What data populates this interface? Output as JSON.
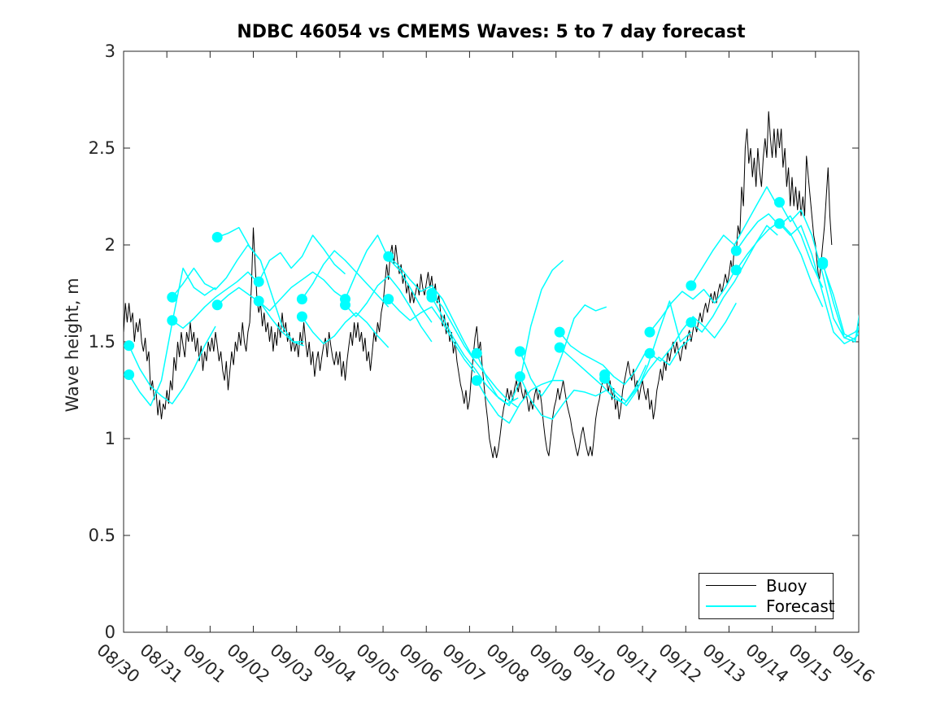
{
  "figure": {
    "title": "NDBC 46054 vs CMEMS Waves: 5 to 7 day forecast"
  },
  "chart_data": {
    "type": "line",
    "title": "NDBC 46054 vs CMEMS Waves: 5 to 7 day forecast",
    "xlabel": "",
    "ylabel": "Wave height, m",
    "grid": false,
    "ylim": [
      0,
      3
    ],
    "y_ticks": [
      0,
      0.5,
      1,
      1.5,
      2,
      2.5,
      3
    ],
    "y_tick_labels": [
      "0",
      "0.5",
      "1",
      "1.5",
      "2",
      "2.5",
      "3"
    ],
    "x_tick_labels": [
      "08/30",
      "08/31",
      "09/01",
      "09/02",
      "09/03",
      "09/04",
      "09/05",
      "09/06",
      "09/07",
      "09/08",
      "09/09",
      "09/10",
      "09/11",
      "09/12",
      "09/13",
      "09/14",
      "09/15",
      "09/16"
    ],
    "x_range_hours": [
      0,
      408
    ],
    "x_time_base": "hours since 08/30 00:00",
    "legend": {
      "position": "inside-bottom-right",
      "entries": [
        {
          "label": "Buoy",
          "color": "#000000"
        },
        {
          "label": "Forecast",
          "color": "#00ffff"
        }
      ]
    },
    "series": [
      {
        "name": "Buoy",
        "style": "line",
        "color": "#000000",
        "line_width": 1,
        "t0_h": 0,
        "step_h": 1,
        "values": [
          1.55,
          1.7,
          1.6,
          1.7,
          1.6,
          1.65,
          1.5,
          1.6,
          1.55,
          1.62,
          1.5,
          1.45,
          1.52,
          1.4,
          1.45,
          1.25,
          1.3,
          1.2,
          1.25,
          1.12,
          1.2,
          1.1,
          1.18,
          1.15,
          1.25,
          1.18,
          1.3,
          1.25,
          1.42,
          1.35,
          1.5,
          1.42,
          1.55,
          1.48,
          1.42,
          1.55,
          1.5,
          1.6,
          1.5,
          1.55,
          1.45,
          1.52,
          1.4,
          1.48,
          1.35,
          1.45,
          1.4,
          1.5,
          1.45,
          1.52,
          1.45,
          1.55,
          1.48,
          1.4,
          1.45,
          1.35,
          1.3,
          1.4,
          1.25,
          1.35,
          1.45,
          1.38,
          1.5,
          1.45,
          1.55,
          1.48,
          1.6,
          1.5,
          1.45,
          1.55,
          1.6,
          1.8,
          2.09,
          1.9,
          1.72,
          1.65,
          1.7,
          1.58,
          1.65,
          1.55,
          1.6,
          1.5,
          1.58,
          1.45,
          1.55,
          1.48,
          1.6,
          1.52,
          1.65,
          1.55,
          1.6,
          1.5,
          1.55,
          1.45,
          1.52,
          1.45,
          1.5,
          1.42,
          1.55,
          1.48,
          1.6,
          1.5,
          1.42,
          1.5,
          1.38,
          1.45,
          1.32,
          1.4,
          1.45,
          1.35,
          1.42,
          1.48,
          1.52,
          1.42,
          1.55,
          1.48,
          1.42,
          1.38,
          1.45,
          1.38,
          1.45,
          1.32,
          1.4,
          1.3,
          1.4,
          1.48,
          1.55,
          1.48,
          1.6,
          1.52,
          1.6,
          1.5,
          1.55,
          1.45,
          1.52,
          1.4,
          1.45,
          1.35,
          1.45,
          1.55,
          1.5,
          1.6,
          1.55,
          1.65,
          1.7,
          1.8,
          1.9,
          1.82,
          1.95,
          2.0,
          1.9,
          2.0,
          1.92,
          1.85,
          1.9,
          1.8,
          1.85,
          1.75,
          1.8,
          1.7,
          1.76,
          1.7,
          1.75,
          1.8,
          1.74,
          1.85,
          1.78,
          1.74,
          1.8,
          1.86,
          1.78,
          1.84,
          1.74,
          1.8,
          1.7,
          1.74,
          1.64,
          1.58,
          1.64,
          1.54,
          1.6,
          1.5,
          1.55,
          1.44,
          1.5,
          1.4,
          1.34,
          1.28,
          1.24,
          1.18,
          1.25,
          1.15,
          1.2,
          1.32,
          1.42,
          1.52,
          1.58,
          1.45,
          1.5,
          1.38,
          1.28,
          1.18,
          1.1,
          1.0,
          0.95,
          0.9,
          0.96,
          0.9,
          0.95,
          1.02,
          1.1,
          1.16,
          1.2,
          1.26,
          1.2,
          1.25,
          1.2,
          1.26,
          1.3,
          1.24,
          1.3,
          1.24,
          1.2,
          1.26,
          1.2,
          1.14,
          1.2,
          1.15,
          1.22,
          1.26,
          1.2,
          1.25,
          1.18,
          1.08,
          1.0,
          0.94,
          0.91,
          1.0,
          1.1,
          1.16,
          1.2,
          1.26,
          1.2,
          1.25,
          1.3,
          1.24,
          1.18,
          1.14,
          1.1,
          1.04,
          1.0,
          0.95,
          0.91,
          0.96,
          1.02,
          1.06,
          1.0,
          0.95,
          0.91,
          0.96,
          0.91,
          1.0,
          1.1,
          1.16,
          1.2,
          1.26,
          1.3,
          1.35,
          1.3,
          1.24,
          1.3,
          1.2,
          1.26,
          1.15,
          1.2,
          1.1,
          1.16,
          1.25,
          1.3,
          1.35,
          1.4,
          1.34,
          1.3,
          1.36,
          1.26,
          1.3,
          1.2,
          1.26,
          1.3,
          1.24,
          1.2,
          1.26,
          1.15,
          1.2,
          1.1,
          1.16,
          1.25,
          1.3,
          1.36,
          1.3,
          1.4,
          1.35,
          1.45,
          1.4,
          1.46,
          1.5,
          1.44,
          1.5,
          1.45,
          1.4,
          1.46,
          1.5,
          1.46,
          1.52,
          1.56,
          1.5,
          1.56,
          1.6,
          1.55,
          1.6,
          1.65,
          1.6,
          1.66,
          1.7,
          1.65,
          1.7,
          1.75,
          1.7,
          1.76,
          1.7,
          1.76,
          1.8,
          1.75,
          1.8,
          1.85,
          1.8,
          1.85,
          1.92,
          1.86,
          2.0,
          1.95,
          2.1,
          2.05,
          2.3,
          2.2,
          2.5,
          2.6,
          2.42,
          2.5,
          2.35,
          2.45,
          2.3,
          2.5,
          2.38,
          2.3,
          2.45,
          2.55,
          2.45,
          2.69,
          2.55,
          2.45,
          2.6,
          2.45,
          2.6,
          2.5,
          2.6,
          2.4,
          2.5,
          2.3,
          2.4,
          2.2,
          2.35,
          2.2,
          2.3,
          2.18,
          2.28,
          2.15,
          2.25,
          2.15,
          2.46,
          2.35,
          2.25,
          2.15,
          2.05,
          2.0,
          1.9,
          1.81,
          1.9,
          2.0,
          2.1,
          2.25,
          2.4,
          2.15,
          2.0
        ]
      },
      {
        "name": "Forecast",
        "style": "line-segments",
        "color": "#00ffff",
        "line_width": 1.5,
        "start_marker": {
          "shape": "filled-circle",
          "radius_px": 6.5,
          "fill": "#00ffff"
        },
        "segments": [
          {
            "t0_h": 3,
            "step_h": 6,
            "values": [
              1.48,
              1.36,
              1.27,
              1.22,
              1.18,
              1.26,
              1.36,
              1.48,
              1.58
            ]
          },
          {
            "t0_h": 3,
            "step_h": 6,
            "values": [
              1.33,
              1.24,
              1.17,
              1.3,
              1.6,
              1.88,
              1.78,
              1.74,
              1.78
            ]
          },
          {
            "t0_h": 27,
            "step_h": 6,
            "values": [
              1.73,
              1.8,
              1.88,
              1.8,
              1.77,
              1.83,
              1.92,
              2.0,
              1.93
            ]
          },
          {
            "t0_h": 27,
            "step_h": 6,
            "values": [
              1.61,
              1.57,
              1.62,
              1.68,
              1.73,
              1.77,
              1.81,
              1.86,
              1.8
            ]
          },
          {
            "t0_h": 52,
            "step_h": 6,
            "values": [
              2.04,
              2.06,
              2.09,
              1.99,
              1.92,
              1.75,
              1.58,
              1.5,
              1.5
            ]
          },
          {
            "t0_h": 52,
            "step_h": 6,
            "values": [
              1.69,
              1.74,
              1.78,
              1.74,
              1.7,
              1.62,
              1.55,
              1.5,
              1.48
            ]
          },
          {
            "t0_h": 75,
            "step_h": 6,
            "values": [
              1.81,
              1.92,
              1.96,
              1.88,
              1.94,
              2.05,
              1.98,
              1.9,
              1.85
            ]
          },
          {
            "t0_h": 75,
            "step_h": 6,
            "values": [
              1.71,
              1.66,
              1.72,
              1.78,
              1.82,
              1.86,
              1.82,
              1.76,
              1.72
            ]
          },
          {
            "t0_h": 99,
            "step_h": 6,
            "values": [
              1.72,
              1.8,
              1.9,
              1.97,
              1.92,
              1.86,
              1.8,
              1.74,
              1.68
            ]
          },
          {
            "t0_h": 99,
            "step_h": 6,
            "values": [
              1.63,
              1.55,
              1.49,
              1.53,
              1.6,
              1.65,
              1.6,
              1.53,
              1.47
            ]
          },
          {
            "t0_h": 123,
            "step_h": 6,
            "values": [
              1.72,
              1.85,
              1.97,
              2.05,
              1.93,
              1.87,
              1.78,
              1.68,
              1.6
            ]
          },
          {
            "t0_h": 123,
            "step_h": 6,
            "values": [
              1.69,
              1.63,
              1.7,
              1.79,
              1.84,
              1.77,
              1.68,
              1.58,
              1.5
            ]
          },
          {
            "t0_h": 147,
            "step_h": 6,
            "values": [
              1.94,
              1.89,
              1.82,
              1.76,
              1.79,
              1.72,
              1.61,
              1.5,
              1.4
            ]
          },
          {
            "t0_h": 147,
            "step_h": 6,
            "values": [
              1.72,
              1.66,
              1.61,
              1.65,
              1.68,
              1.6,
              1.5,
              1.41,
              1.34
            ]
          },
          {
            "t0_h": 171,
            "step_h": 6,
            "values": [
              1.75,
              1.68,
              1.58,
              1.48,
              1.4,
              1.33,
              1.26,
              1.2,
              1.16
            ]
          },
          {
            "t0_h": 171,
            "step_h": 6,
            "values": [
              1.73,
              1.63,
              1.52,
              1.43,
              1.36,
              1.28,
              1.22,
              1.18,
              1.21
            ]
          },
          {
            "t0_h": 196,
            "step_h": 6,
            "values": [
              1.44,
              1.3,
              1.21,
              1.17,
              1.3,
              1.58,
              1.77,
              1.87,
              1.92
            ]
          },
          {
            "t0_h": 196,
            "step_h": 6,
            "values": [
              1.3,
              1.2,
              1.12,
              1.08,
              1.18,
              1.25,
              1.28,
              1.3,
              1.3
            ]
          },
          {
            "t0_h": 220,
            "step_h": 6,
            "values": [
              1.45,
              1.31,
              1.22,
              1.3,
              1.45,
              1.62,
              1.69,
              1.66,
              1.68
            ]
          },
          {
            "t0_h": 220,
            "step_h": 6,
            "values": [
              1.32,
              1.2,
              1.12,
              1.1,
              1.18,
              1.25,
              1.24,
              1.22,
              1.25
            ]
          },
          {
            "t0_h": 242,
            "step_h": 6,
            "values": [
              1.55,
              1.48,
              1.44,
              1.41,
              1.38,
              1.32,
              1.28,
              1.35,
              1.45
            ]
          },
          {
            "t0_h": 242,
            "step_h": 6,
            "values": [
              1.47,
              1.42,
              1.37,
              1.32,
              1.27,
              1.21,
              1.18,
              1.26,
              1.38
            ]
          },
          {
            "t0_h": 267,
            "step_h": 6,
            "values": [
              1.33,
              1.22,
              1.17,
              1.25,
              1.38,
              1.55,
              1.71,
              1.5,
              1.55
            ]
          },
          {
            "t0_h": 267,
            "step_h": 6,
            "values": [
              1.31,
              1.24,
              1.19,
              1.26,
              1.35,
              1.42,
              1.38,
              1.47,
              1.52
            ]
          },
          {
            "t0_h": 292,
            "step_h": 6,
            "values": [
              1.55,
              1.62,
              1.7,
              1.76,
              1.72,
              1.77,
              1.7,
              1.78,
              1.88
            ]
          },
          {
            "t0_h": 292,
            "step_h": 6,
            "values": [
              1.44,
              1.4,
              1.47,
              1.56,
              1.63,
              1.58,
              1.52,
              1.6,
              1.7
            ]
          },
          {
            "t0_h": 315,
            "step_h": 6,
            "values": [
              1.79,
              1.88,
              1.97,
              2.05,
              2.0,
              2.1,
              2.2,
              2.3,
              2.2
            ]
          },
          {
            "t0_h": 315,
            "step_h": 6,
            "values": [
              1.6,
              1.55,
              1.63,
              1.73,
              1.81,
              1.91,
              2.01,
              2.1,
              2.05
            ]
          },
          {
            "t0_h": 340,
            "step_h": 6,
            "values": [
              1.97,
              2.05,
              2.12,
              2.16,
              2.1,
              2.15,
              2.05,
              1.9,
              1.78
            ]
          },
          {
            "t0_h": 340,
            "step_h": 6,
            "values": [
              1.87,
              1.95,
              2.02,
              2.08,
              2.12,
              2.06,
              1.95,
              1.8,
              1.68
            ]
          },
          {
            "t0_h": 364,
            "step_h": 6,
            "values": [
              2.22,
              2.12,
              2.18,
              2.05,
              1.85,
              1.62,
              1.52,
              1.55,
              1.62
            ]
          },
          {
            "t0_h": 364,
            "step_h": 6,
            "values": [
              2.11,
              2.05,
              2.1,
              1.95,
              1.75,
              1.55,
              1.49,
              1.52,
              1.58
            ]
          },
          {
            "t0_h": 388,
            "step_h": 6,
            "values": [
              1.91,
              1.7,
              1.52,
              1.5,
              1.87
            ]
          },
          {
            "t0_h": 388,
            "step_h": 6,
            "values": [
              1.9,
              1.74,
              1.54,
              1.51,
              1.7
            ]
          }
        ]
      }
    ]
  }
}
